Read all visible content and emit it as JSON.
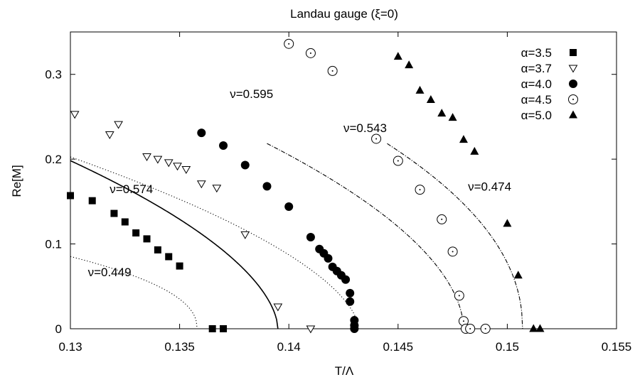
{
  "chart_data": {
    "type": "scatter",
    "title": "Landau gauge (ξ=0)",
    "xlabel": "T/Λ",
    "ylabel": "Re[M]",
    "xlim": [
      0.13,
      0.155
    ],
    "ylim": [
      0,
      0.35
    ],
    "xticks": [
      0.13,
      0.135,
      0.14,
      0.145,
      0.15,
      0.155
    ],
    "xtick_labels": [
      "0.13",
      "0.135",
      "0.14",
      "0.145",
      "0.15",
      "0.155"
    ],
    "yticks": [
      0,
      0.1,
      0.2,
      0.3
    ],
    "ytick_labels": [
      "0",
      "0.1",
      "0.2",
      "0.3"
    ],
    "grid": false,
    "legend_position": "top-right",
    "series": [
      {
        "name": "α=3.5",
        "marker": "filled-square",
        "x": [
          0.13,
          0.131,
          0.132,
          0.1325,
          0.133,
          0.1335,
          0.134,
          0.1345,
          0.135,
          0.1365,
          0.137
        ],
        "y": [
          0.157,
          0.151,
          0.136,
          0.126,
          0.113,
          0.106,
          0.093,
          0.085,
          0.074,
          0.0,
          0.0
        ]
      },
      {
        "name": "α=3.7",
        "marker": "open-down-triangle",
        "x": [
          0.1302,
          0.1322,
          0.1318,
          0.1335,
          0.134,
          0.1345,
          0.1349,
          0.1353,
          0.136,
          0.1367,
          0.138,
          0.1395,
          0.141
        ],
        "y": [
          0.253,
          0.241,
          0.229,
          0.203,
          0.2,
          0.196,
          0.192,
          0.188,
          0.171,
          0.166,
          0.111,
          0.026,
          0.0
        ]
      },
      {
        "name": "α=4.0",
        "marker": "filled-circle",
        "x": [
          0.136,
          0.137,
          0.138,
          0.139,
          0.14,
          0.141,
          0.1414,
          0.1416,
          0.1418,
          0.142,
          0.1422,
          0.1424,
          0.1426,
          0.1428,
          0.1428,
          0.143,
          0.143,
          0.143
        ],
        "y": [
          0.231,
          0.216,
          0.193,
          0.168,
          0.144,
          0.108,
          0.094,
          0.089,
          0.083,
          0.073,
          0.068,
          0.063,
          0.058,
          0.042,
          0.032,
          0.01,
          0.004,
          0.0
        ]
      },
      {
        "name": "α=4.5",
        "marker": "open-circle",
        "x": [
          0.14,
          0.141,
          0.142,
          0.144,
          0.145,
          0.146,
          0.147,
          0.1475,
          0.1478,
          0.148,
          0.1481,
          0.1483,
          0.149
        ],
        "y": [
          0.336,
          0.325,
          0.304,
          0.224,
          0.198,
          0.164,
          0.129,
          0.091,
          0.039,
          0.009,
          0.0,
          0.0,
          0.0
        ]
      },
      {
        "name": "α=5.0",
        "marker": "filled-triangle",
        "x": [
          0.145,
          0.1455,
          0.146,
          0.1465,
          0.147,
          0.1475,
          0.148,
          0.1485,
          0.15,
          0.1505,
          0.1512,
          0.1515
        ],
        "y": [
          0.321,
          0.311,
          0.281,
          0.27,
          0.254,
          0.249,
          0.223,
          0.209,
          0.124,
          0.063,
          0.0,
          0.0
        ]
      }
    ],
    "fits": [
      {
        "name": "ν=0.449",
        "style": "dotted",
        "Tc": 0.1358,
        "A": 0.86,
        "nu": 0.449,
        "xmin": 0.13,
        "xmax": 0.1358
      },
      {
        "name": "ν=0.574",
        "style": "solid",
        "Tc": 0.1395,
        "A": 2.87,
        "nu": 0.574,
        "xmin": 0.13,
        "xmax": 0.1395
      },
      {
        "name": "ν=0.595",
        "style": "dotted",
        "Tc": 0.1432,
        "A": 2.66,
        "nu": 0.595,
        "xmin": 0.13,
        "xmax": 0.1432
      },
      {
        "name": "ν=0.543",
        "style": "dashdot",
        "Tc": 0.148,
        "A": 2.82,
        "nu": 0.543,
        "xmin": 0.139,
        "xmax": 0.148
      },
      {
        "name": "ν=0.474",
        "style": "dashdot",
        "Tc": 0.1507,
        "A": 2.43,
        "nu": 0.474,
        "xmin": 0.1445,
        "xmax": 0.1507
      }
    ],
    "annotations": [
      {
        "text": "ν=0.449",
        "x": 0.1308,
        "y": 0.062
      },
      {
        "text": "ν=0.574",
        "x": 0.1318,
        "y": 0.16
      },
      {
        "text": "ν=0.595",
        "x": 0.1373,
        "y": 0.272
      },
      {
        "text": "ν=0.543",
        "x": 0.1425,
        "y": 0.232
      },
      {
        "text": "ν=0.474",
        "x": 0.1482,
        "y": 0.163
      }
    ]
  }
}
